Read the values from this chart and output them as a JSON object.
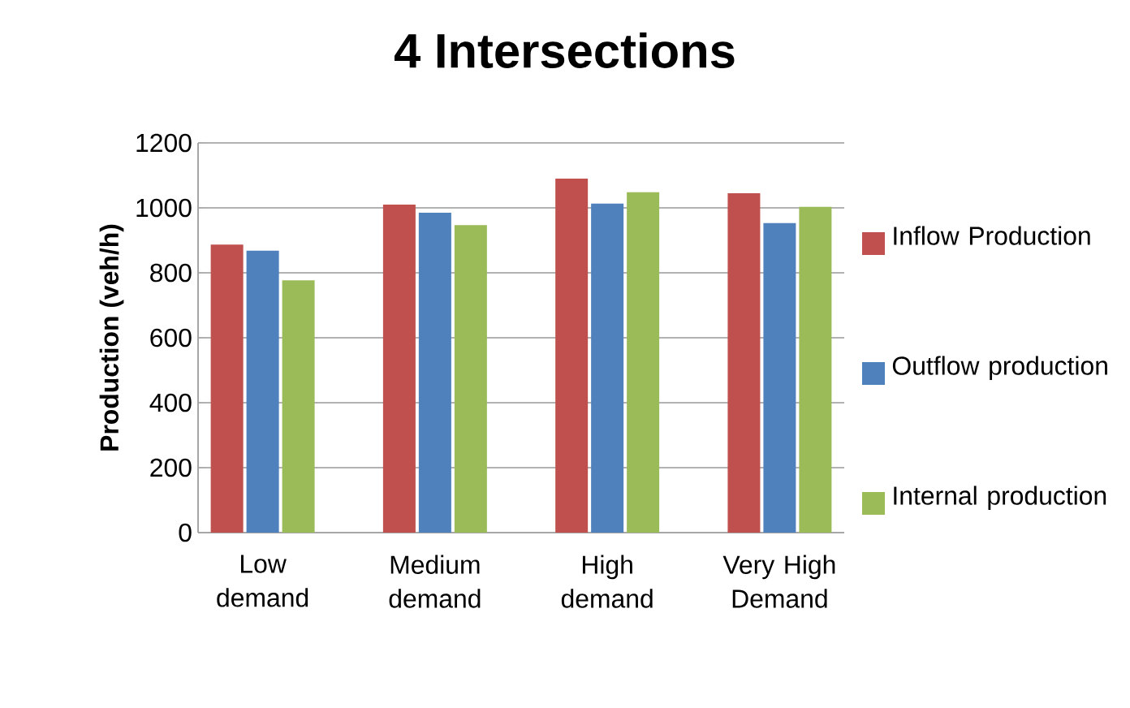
{
  "chart_data": {
    "type": "bar",
    "title": "4 Intersections",
    "ylabel": "Production (veh/h)",
    "categories": [
      "Low demand",
      "Medium demand",
      "High demand",
      "Very High Demand"
    ],
    "series": [
      {
        "name": "Inflow Production",
        "color": "#c0504d",
        "values": [
          887,
          1010,
          1090,
          1045
        ]
      },
      {
        "name": "Outflow production",
        "color": "#4f81bd",
        "values": [
          868,
          985,
          1013,
          953
        ]
      },
      {
        "name": "Internal production",
        "color": "#9bbb59",
        "values": [
          777,
          947,
          1048,
          1003
        ]
      }
    ],
    "ylim": [
      0,
      1200
    ],
    "yticks": [
      0,
      200,
      400,
      600,
      800,
      1000,
      1200
    ],
    "grid": "y",
    "legend": "right"
  }
}
